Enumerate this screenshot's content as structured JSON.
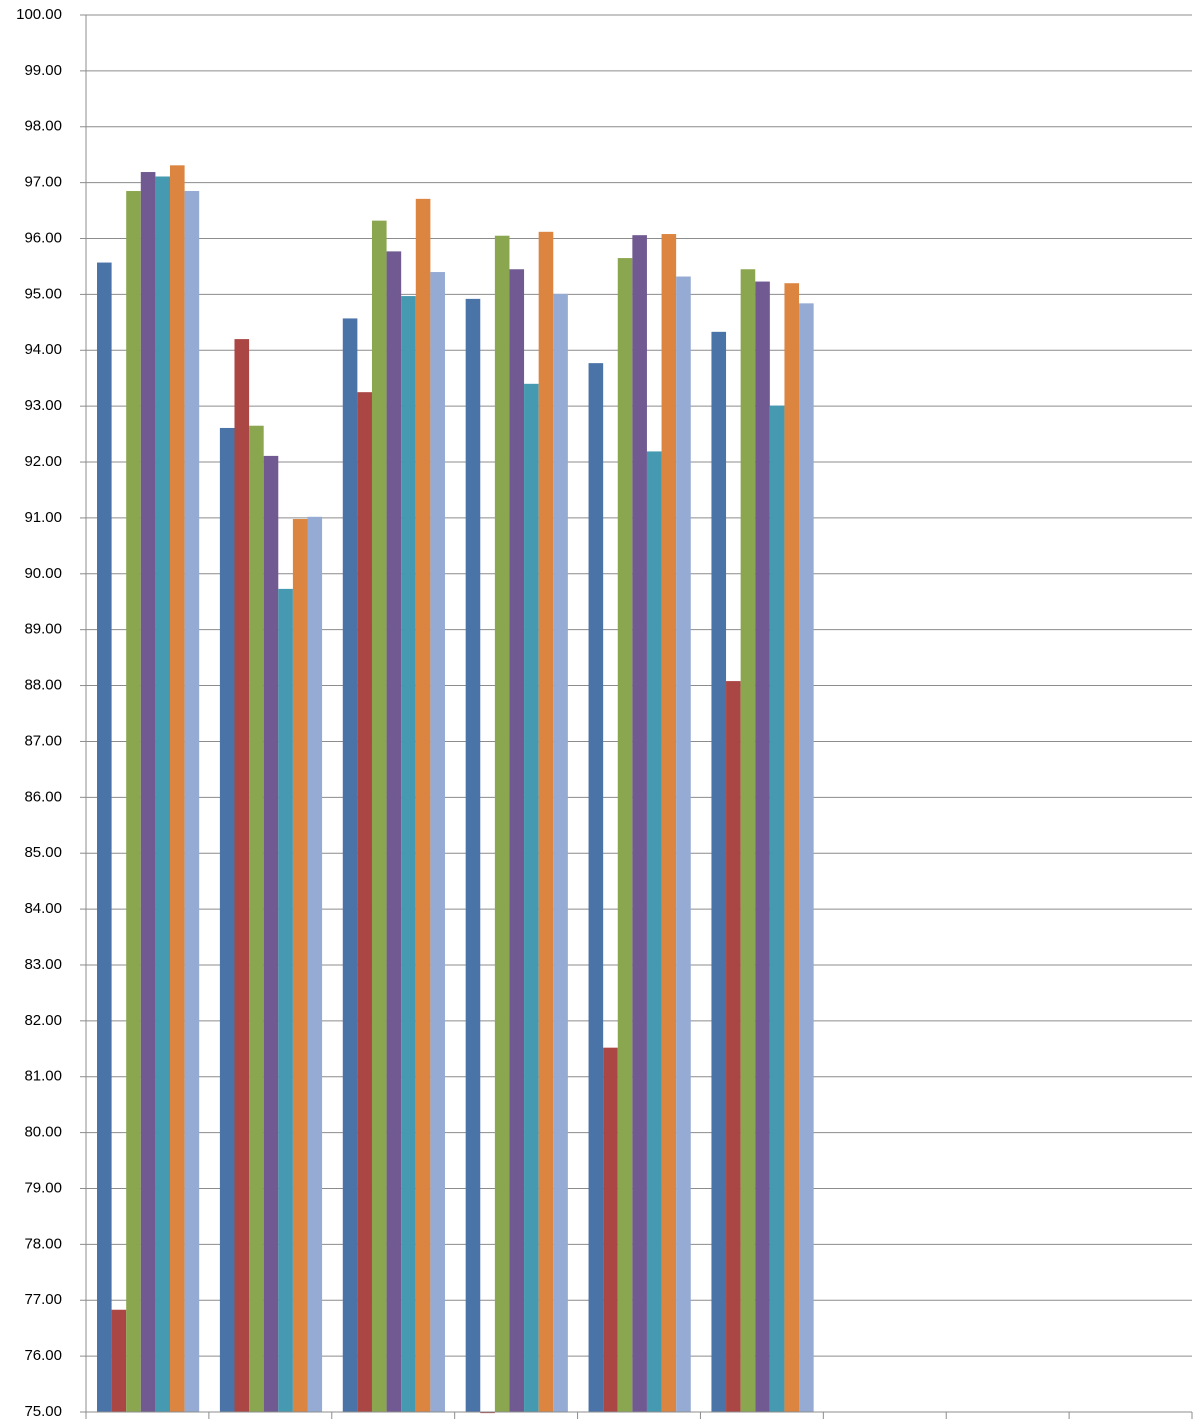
{
  "chart_data": {
    "type": "bar",
    "categories": [
      null,
      null,
      null,
      null,
      null,
      null,
      null,
      null,
      null
    ],
    "series": [
      {
        "color": "#4a73a8",
        "values": [
          95.57,
          92.61,
          94.57,
          94.92,
          93.77,
          94.33,
          null,
          null,
          null
        ]
      },
      {
        "color": "#aa4644",
        "values": [
          76.83,
          94.2,
          93.25,
          74.98,
          81.52,
          88.08,
          null,
          null,
          null
        ]
      },
      {
        "color": "#8aa64e",
        "values": [
          96.85,
          92.65,
          96.32,
          96.05,
          95.65,
          95.45,
          null,
          null,
          null
        ]
      },
      {
        "color": "#715a91",
        "values": [
          97.19,
          92.11,
          95.77,
          95.45,
          96.06,
          95.23,
          null,
          null,
          null
        ]
      },
      {
        "color": "#4599b0",
        "values": [
          97.11,
          89.73,
          94.97,
          93.4,
          92.19,
          93.01,
          null,
          null,
          null
        ]
      },
      {
        "color": "#db8540",
        "values": [
          97.31,
          90.98,
          96.71,
          96.12,
          96.08,
          95.2,
          null,
          null,
          null
        ]
      },
      {
        "color": "#95abd3",
        "values": [
          96.85,
          91.02,
          95.4,
          95.01,
          95.32,
          94.84,
          null,
          null,
          null
        ]
      }
    ],
    "ylim": [
      75,
      100
    ],
    "yticks": [
      {
        "value": 75,
        "label": "75.00"
      },
      {
        "value": 76,
        "label": "76.00"
      },
      {
        "value": 77,
        "label": "77.00"
      },
      {
        "value": 78,
        "label": "78.00"
      },
      {
        "value": 79,
        "label": "79.00"
      },
      {
        "value": 80,
        "label": "80.00"
      },
      {
        "value": 81,
        "label": "81.00"
      },
      {
        "value": 82,
        "label": "82.00"
      },
      {
        "value": 83,
        "label": "83.00"
      },
      {
        "value": 84,
        "label": "84.00"
      },
      {
        "value": 85,
        "label": "85.00"
      },
      {
        "value": 86,
        "label": "86.00"
      },
      {
        "value": 87,
        "label": "87.00"
      },
      {
        "value": 88,
        "label": "88.00"
      },
      {
        "value": 89,
        "label": "89.00"
      },
      {
        "value": 90,
        "label": "90.00"
      },
      {
        "value": 91,
        "label": "91.00"
      },
      {
        "value": 92,
        "label": "92.00"
      },
      {
        "value": 93,
        "label": "93.00"
      },
      {
        "value": 94,
        "label": "94.00"
      },
      {
        "value": 95,
        "label": "95.00"
      },
      {
        "value": 96,
        "label": "96.00"
      },
      {
        "value": 97,
        "label": "97.00"
      },
      {
        "value": 98,
        "label": "98.00"
      },
      {
        "value": 99,
        "label": "99.00"
      },
      {
        "value": 100,
        "label": "100.00"
      }
    ],
    "grid": true
  }
}
